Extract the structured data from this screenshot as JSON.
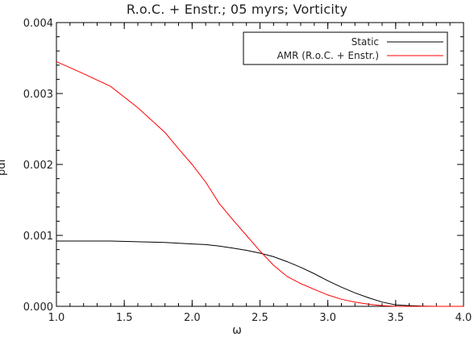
{
  "chart_data": {
    "type": "line",
    "title": "R.o.C. + Enstr.; 05 myrs; Vorticity",
    "xlabel": "ω",
    "ylabel": "pdf",
    "xlim": [
      1.0,
      4.0
    ],
    "ylim": [
      0.0,
      0.004
    ],
    "xticks": [
      1.0,
      1.5,
      2.0,
      2.5,
      3.0,
      3.5,
      4.0
    ],
    "xtick_labels": [
      "1.0",
      "1.5",
      "2.0",
      "2.5",
      "3.0",
      "3.5",
      "4.0"
    ],
    "yticks": [
      0.0,
      0.001,
      0.002,
      0.003,
      0.004
    ],
    "ytick_labels": [
      "0.000",
      "0.001",
      "0.002",
      "0.003",
      "0.004"
    ],
    "grid": false,
    "legend": "top-right",
    "series": [
      {
        "name": "Static",
        "color": "#000000",
        "x": [
          1.0,
          1.2,
          1.4,
          1.6,
          1.8,
          2.0,
          2.1,
          2.2,
          2.3,
          2.4,
          2.5,
          2.6,
          2.7,
          2.8,
          2.9,
          3.0,
          3.1,
          3.2,
          3.3,
          3.4,
          3.5,
          3.6,
          3.7,
          3.8,
          4.0
        ],
        "y": [
          0.00092,
          0.00092,
          0.00092,
          0.00091,
          0.0009,
          0.00088,
          0.00087,
          0.00085,
          0.00082,
          0.00079,
          0.00075,
          0.0007,
          0.00063,
          0.00055,
          0.00046,
          0.00036,
          0.00027,
          0.00019,
          0.00012,
          6e-05,
          2e-05,
          1e-05,
          3e-06,
          0.0,
          0.0
        ]
      },
      {
        "name": "AMR (R.o.C. + Enstr.)",
        "color": "#ff0000",
        "x": [
          1.0,
          1.2,
          1.4,
          1.6,
          1.8,
          1.9,
          2.0,
          2.1,
          2.2,
          2.3,
          2.4,
          2.5,
          2.6,
          2.7,
          2.8,
          2.9,
          3.0,
          3.1,
          3.2,
          3.3,
          3.4,
          3.5,
          3.6,
          3.8,
          4.0
        ],
        "y": [
          0.00345,
          0.00328,
          0.0031,
          0.0028,
          0.00245,
          0.00222,
          0.002,
          0.00175,
          0.00145,
          0.00122,
          0.001,
          0.00078,
          0.00058,
          0.00042,
          0.00032,
          0.00024,
          0.00016,
          0.0001,
          6e-05,
          3e-05,
          1e-05,
          0.0,
          0.0,
          0.0,
          0.0
        ]
      }
    ]
  }
}
